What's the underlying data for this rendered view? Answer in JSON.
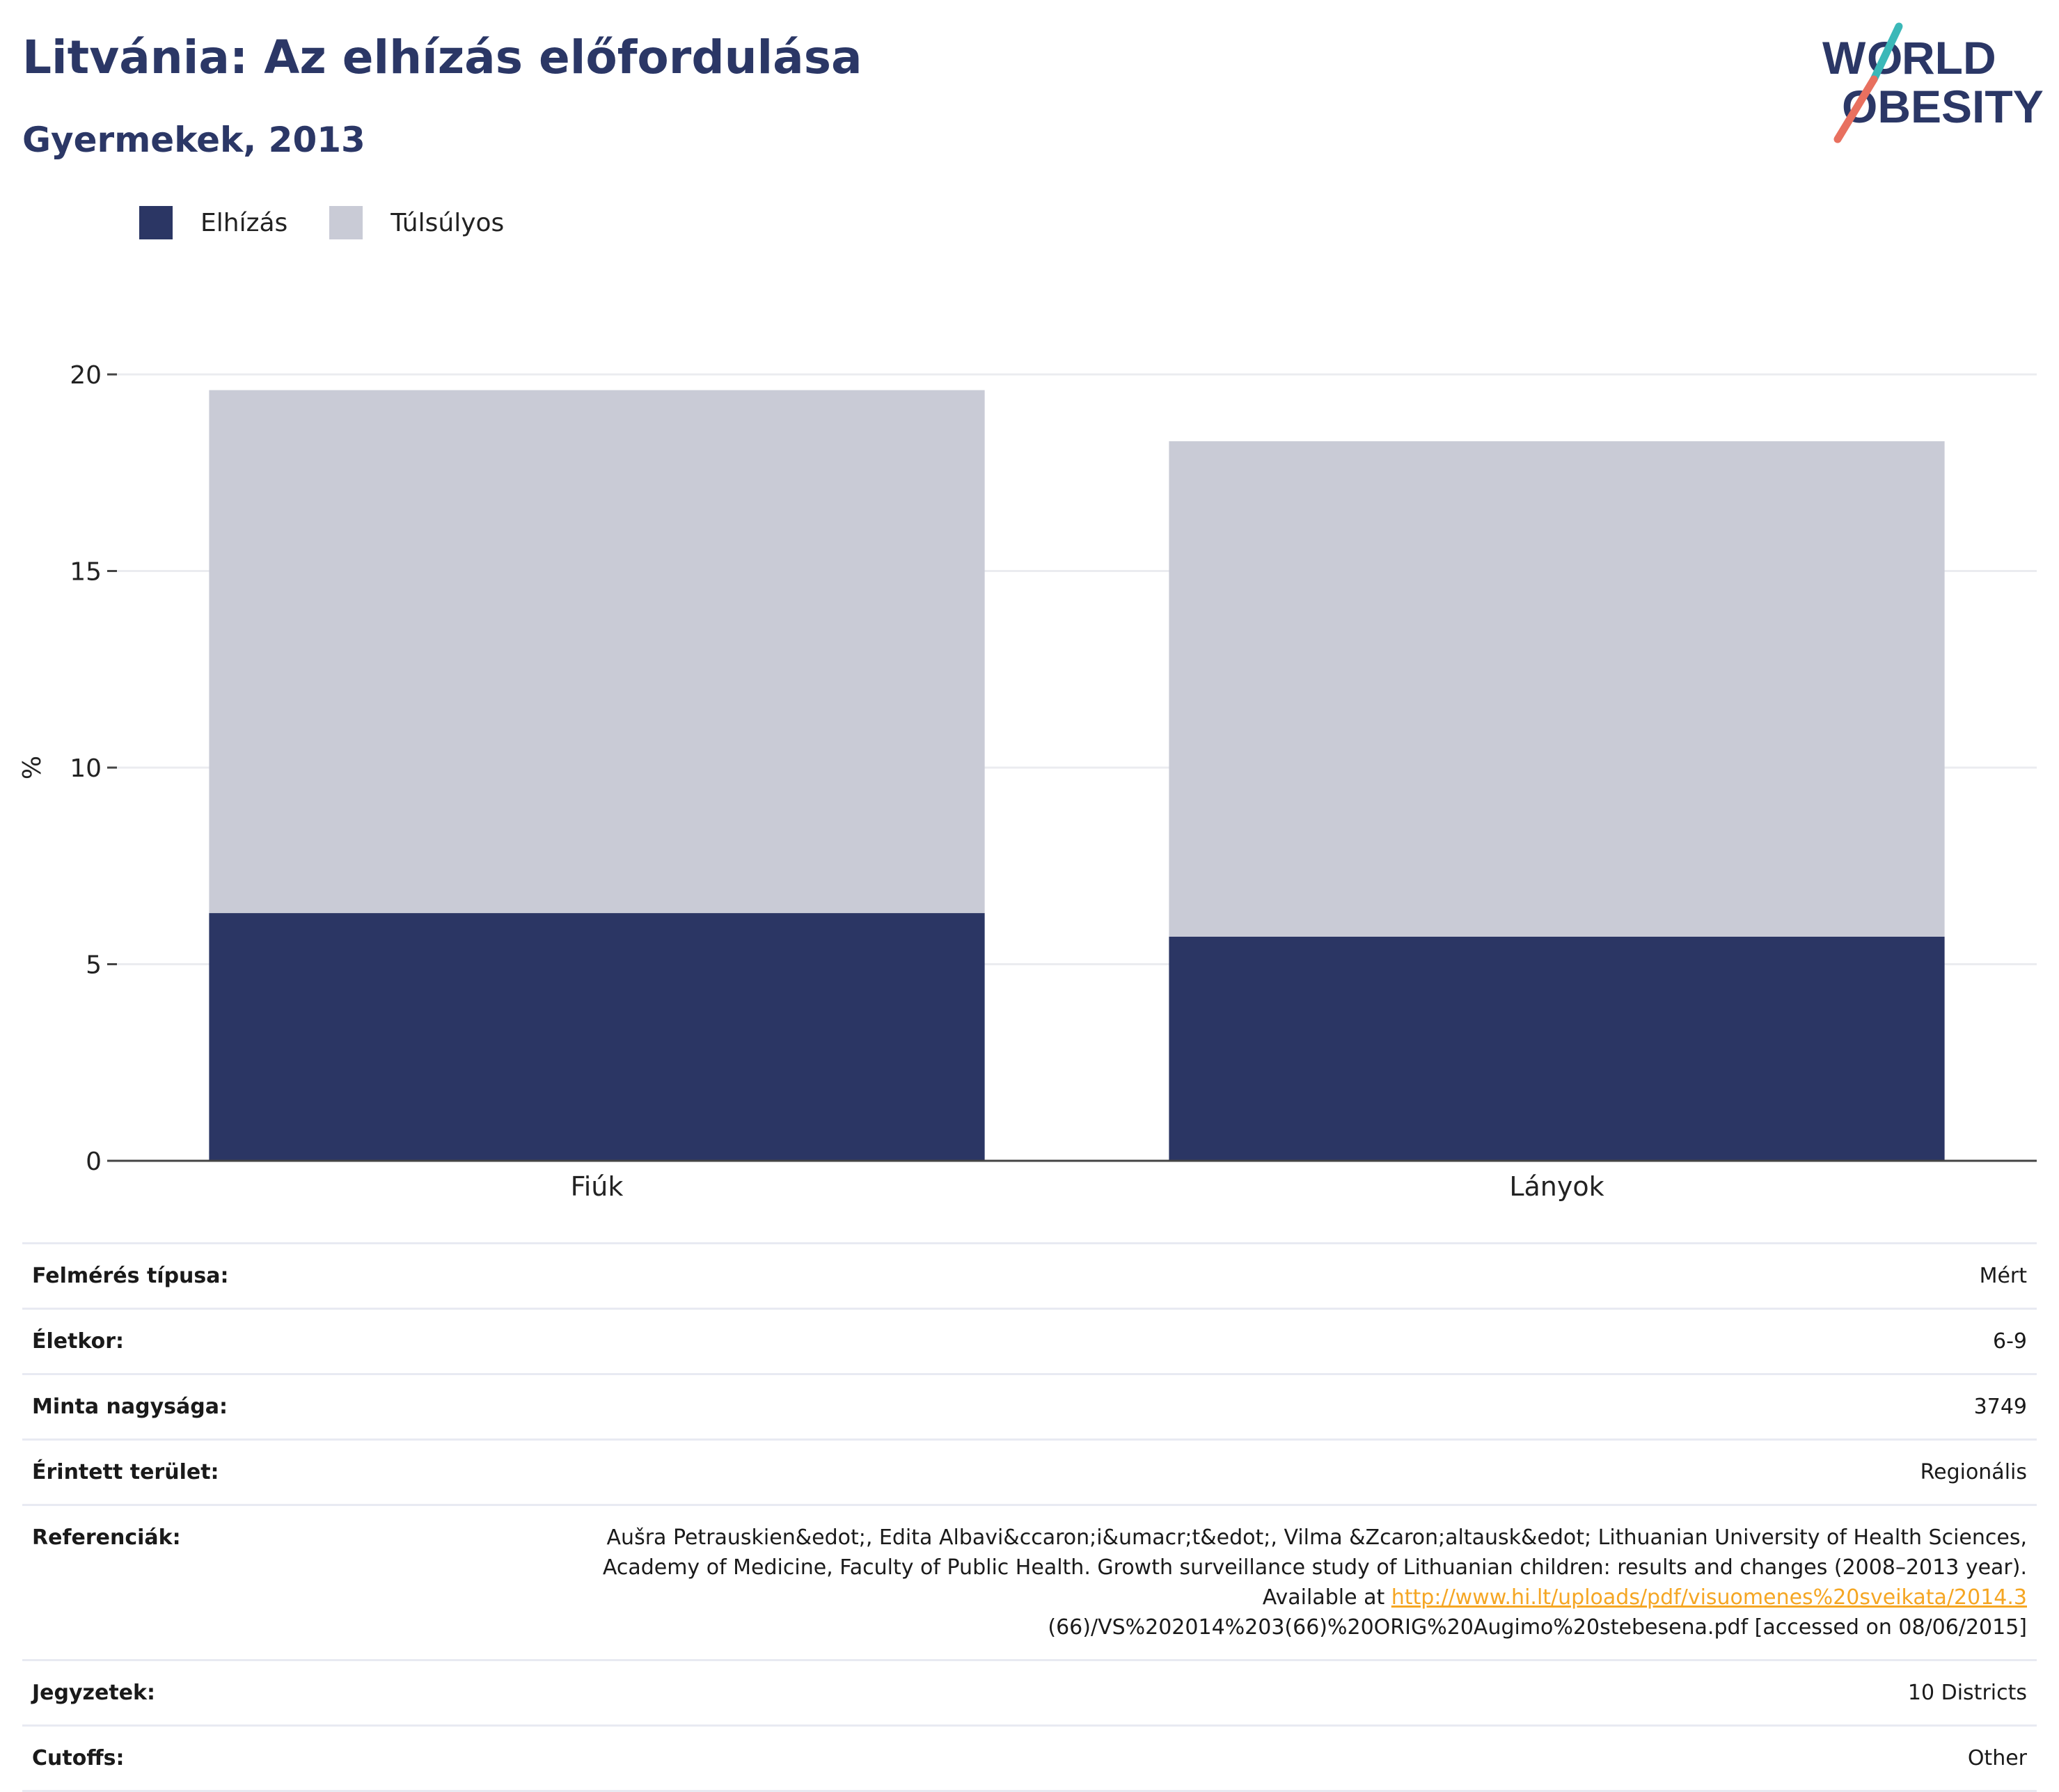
{
  "header": {
    "title": "Litvánia: Az elhízás előfordulása",
    "subtitle": "Gyermekek, 2013"
  },
  "logo": {
    "line1": "WORLD",
    "line2": "OBESITY"
  },
  "colors": {
    "obesity": "#2b3664",
    "overweight": "#c9cbd6",
    "title": "#2b3766",
    "link": "#f5a623"
  },
  "chart_data": {
    "type": "bar",
    "stacked": true,
    "categories": [
      "Fiúk",
      "Lányok"
    ],
    "series": [
      {
        "name": "Elhízás",
        "values": [
          6.3,
          5.7
        ]
      },
      {
        "name": "Túlsúlyos",
        "values": [
          13.3,
          12.6
        ]
      }
    ],
    "ylabel": "%",
    "ylim": [
      0,
      20
    ],
    "yticks": [
      0,
      5,
      10,
      15,
      20
    ],
    "grid": true,
    "legend_position": "top-left"
  },
  "info": {
    "survey_type": {
      "label": "Felmérés típusa:",
      "value": "Mért"
    },
    "age": {
      "label": "Életkor:",
      "value": "6-9"
    },
    "sample_size": {
      "label": "Minta nagysága:",
      "value": "3749"
    },
    "area": {
      "label": "Érintett terület:",
      "value": "Regionális"
    },
    "references": {
      "label": "Referenciák:",
      "line1": "Aušra Petrauskien&edot;, Edita Albavi&ccaron;i&umacr;t&edot;, Vilma &Zcaron;altausk&edot; Lithuanian University of Health Sciences,",
      "line2": "Academy of Medicine, Faculty of Public Health. Growth surveillance study of Lithuanian children: results and changes (2008–2013 year).",
      "available_prefix": "Available at ",
      "link_text": "http://www.hi.lt/uploads/pdf/visuomenes%20sveikata/2014.3",
      "line4": "(66)/VS%202014%203(66)%20ORIG%20Augimo%20stebesena.pdf [accessed on 08/06/2015]"
    },
    "notes": {
      "label": "Jegyzetek:",
      "value": "10 Districts"
    },
    "cutoffs": {
      "label": "Cutoffs:",
      "value": "Other"
    }
  }
}
